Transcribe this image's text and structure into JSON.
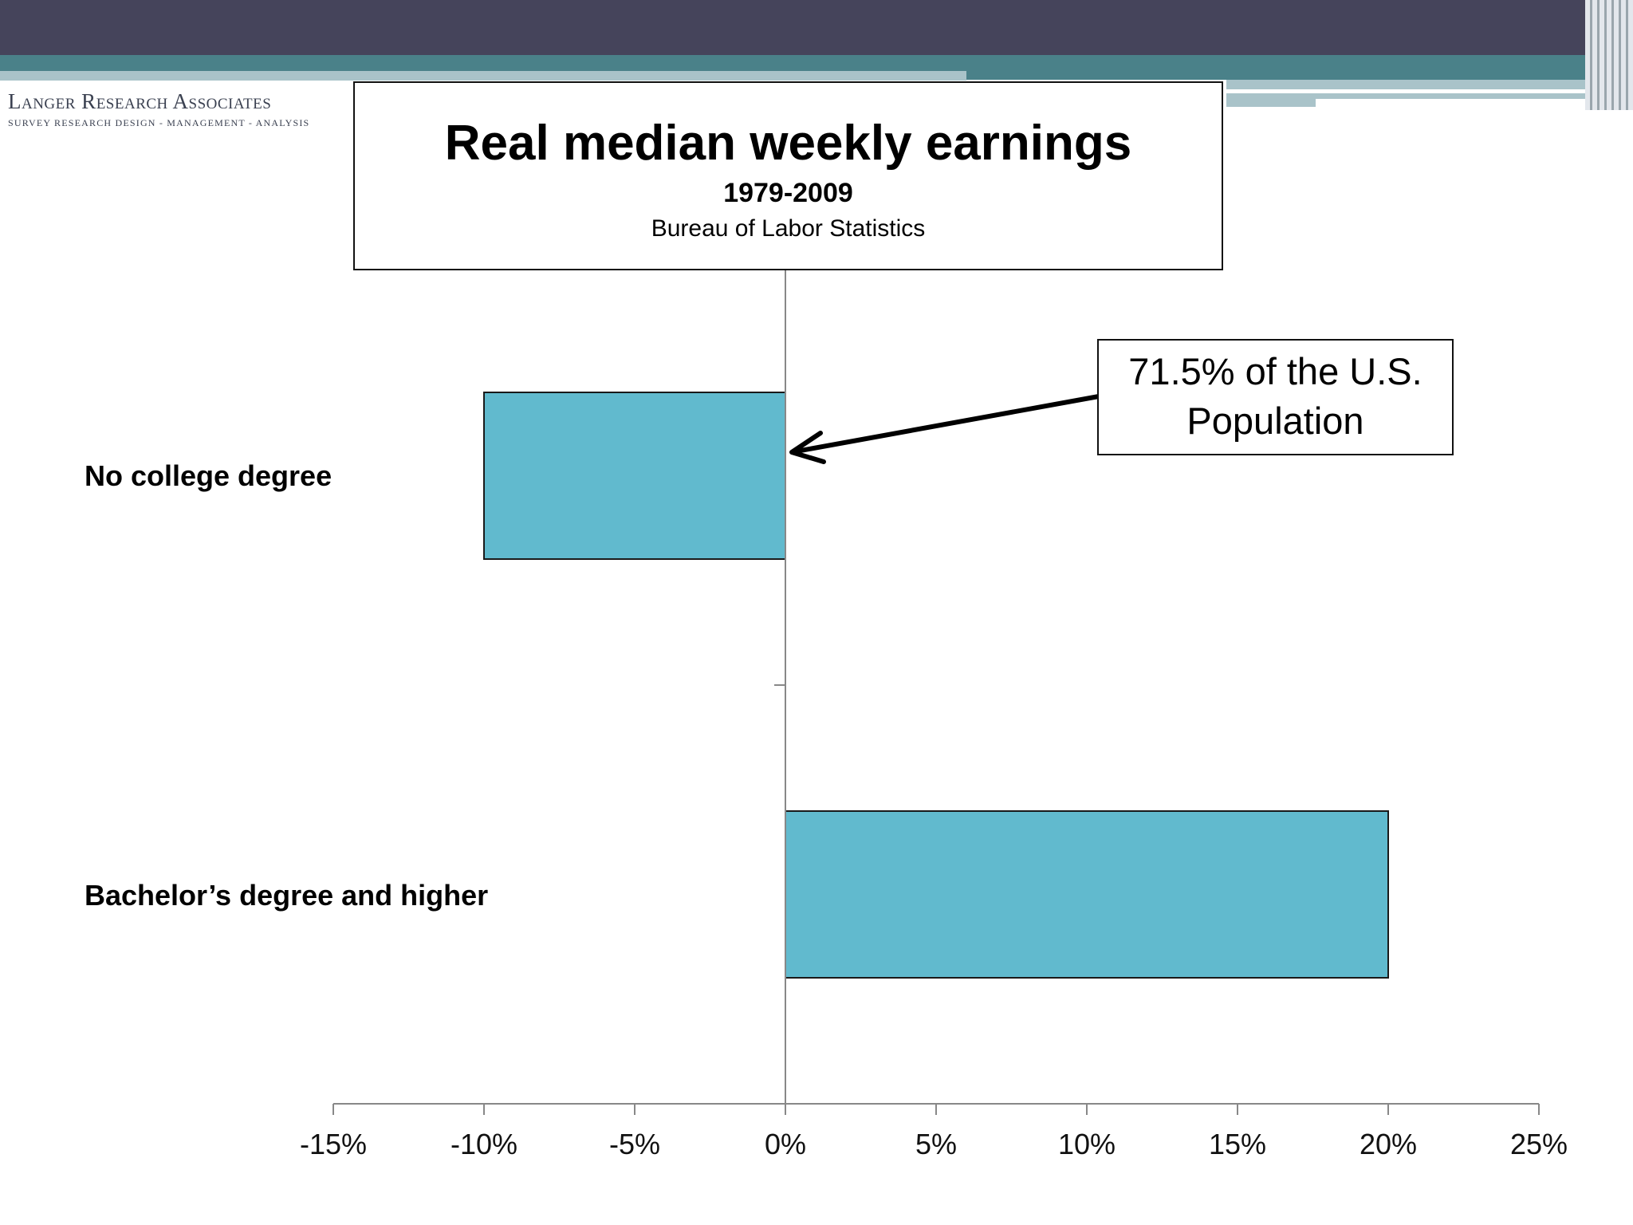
{
  "logo": {
    "name": "Langer Research Associates",
    "tagline": "SURVEY RESEARCH DESIGN - MANAGEMENT - ANALYSIS"
  },
  "chart_data": {
    "type": "bar",
    "orientation": "horizontal",
    "title": "Real median weekly earnings",
    "subtitle": "1979-2009",
    "source": "Bureau of Labor Statistics",
    "categories": [
      "No college degree",
      "Bachelor’s degree and higher"
    ],
    "values": [
      -10,
      20
    ],
    "unit": "%",
    "xlim": [
      -15,
      25
    ],
    "x_ticks": [
      -15,
      -10,
      -5,
      0,
      5,
      10,
      15,
      20,
      25
    ],
    "x_tick_labels": [
      "-15%",
      "-10%",
      "-5%",
      "0%",
      "5%",
      "10%",
      "15%",
      "20%",
      "25%"
    ],
    "bar_color": "#61bace",
    "grid": false,
    "annotation": {
      "line1": "71.5% of the U.S.",
      "line2": "Population",
      "points_to": "No college degree"
    }
  }
}
